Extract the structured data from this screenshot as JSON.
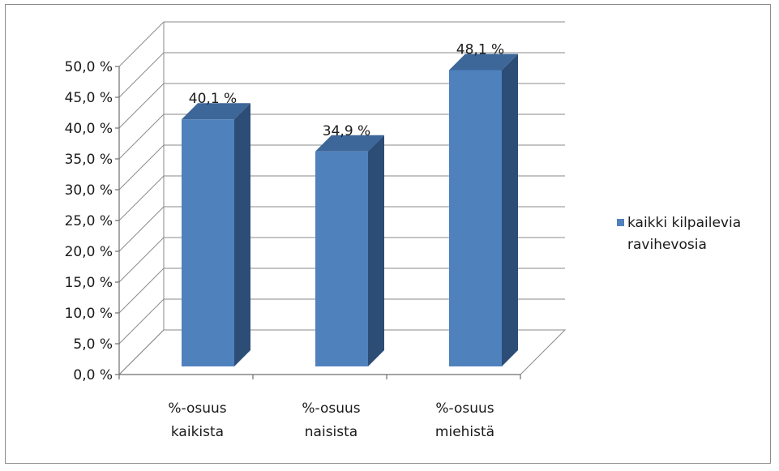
{
  "chart_data": {
    "type": "bar",
    "three_d": true,
    "categories": [
      "%-osuus kaikista",
      "%-osuus naisista",
      "%-osuus miehistä"
    ],
    "category_lines": [
      [
        "%-osuus",
        "kaikista"
      ],
      [
        "%-osuus",
        "naisista"
      ],
      [
        "%-osuus",
        "miehistä"
      ]
    ],
    "series": [
      {
        "name": "kaikki kilpailevia ravihevosia",
        "name_lines": [
          "kaikki kilpailevia",
          "ravihevosia"
        ],
        "values": [
          40.1,
          34.9,
          48.1
        ],
        "data_labels": [
          "40,1 %",
          "34,9 %",
          "48,1 %"
        ]
      }
    ],
    "ylim": [
      0,
      50
    ],
    "y_tick_labels": [
      "0,0 %",
      "5,0 %",
      "10,0 %",
      "15,0 %",
      "20,0 %",
      "25,0 %",
      "30,0 %",
      "35,0 %",
      "40,0 %",
      "45,0 %",
      "50,0 %"
    ],
    "grid": true,
    "legend_position": "right",
    "colors": {
      "front": "#4f81bd",
      "side": "#2c4d75",
      "top": "#3d6699",
      "grid": "#8a8a8a"
    }
  }
}
